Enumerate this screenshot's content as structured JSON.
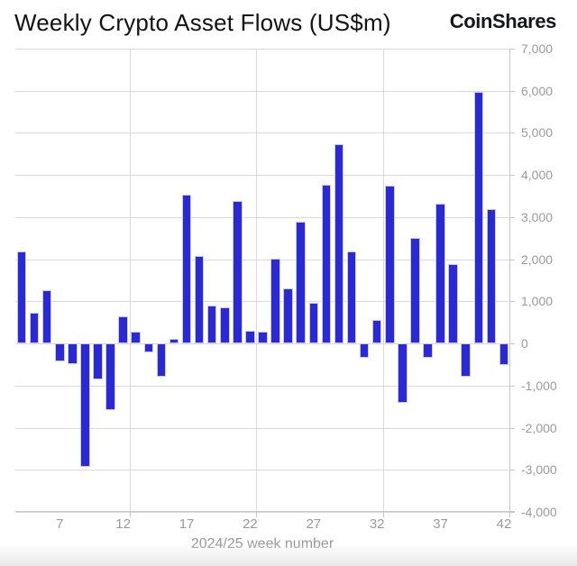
{
  "header": {
    "title": "Weekly Crypto Asset Flows (US$m)",
    "logo_text": "CoinShares"
  },
  "chart_data": {
    "type": "bar",
    "title": "Weekly Crypto Asset Flows (US$m)",
    "xlabel": "2024/25 week number",
    "ylabel": "",
    "x": [
      4,
      5,
      6,
      7,
      8,
      9,
      10,
      11,
      12,
      13,
      14,
      15,
      16,
      17,
      18,
      19,
      20,
      21,
      22,
      23,
      24,
      25,
      26,
      27,
      28,
      29,
      30,
      31,
      32,
      33,
      34,
      35,
      36,
      37,
      38,
      39,
      40,
      41,
      42
    ],
    "values": [
      2180,
      740,
      1260,
      -430,
      -490,
      -2930,
      -860,
      -1580,
      640,
      280,
      -220,
      -790,
      110,
      3530,
      2080,
      900,
      860,
      3380,
      310,
      280,
      2010,
      1300,
      2890,
      970,
      3770,
      4730,
      2180,
      -340,
      560,
      3750,
      -1410,
      2500,
      -340,
      3320,
      1880,
      -790,
      5970,
      3190,
      -510
    ],
    "ylim": [
      -4000,
      7000
    ],
    "y_tick_values": [
      7000,
      6000,
      5000,
      4000,
      3000,
      2000,
      1000,
      0,
      -1000,
      -2000,
      -3000,
      -4000
    ],
    "y_tick_labels": [
      "7,000",
      "6,000",
      "5,000",
      "4,000",
      "3,000",
      "2,000",
      "1,000",
      "0",
      "-1,000",
      "-2,000",
      "-3,000",
      "-4,000"
    ],
    "x_tick_weeks": [
      7,
      12,
      17,
      22,
      27,
      32,
      37,
      42
    ],
    "x_tick_labels": [
      "7",
      "12",
      "17",
      "22",
      "27",
      "32",
      "37",
      "42"
    ],
    "x_gridline_weeks": [
      12.5,
      22.5,
      32.5
    ],
    "grid": true,
    "legend": "none",
    "colors": {
      "bar": "#2a2ad0",
      "grid": "#d9d9d9",
      "axis": "#c6c6c6",
      "labels": "#9a9a9a",
      "axis_title": "#969696",
      "title": "#121212",
      "logo": "#16161e"
    }
  }
}
